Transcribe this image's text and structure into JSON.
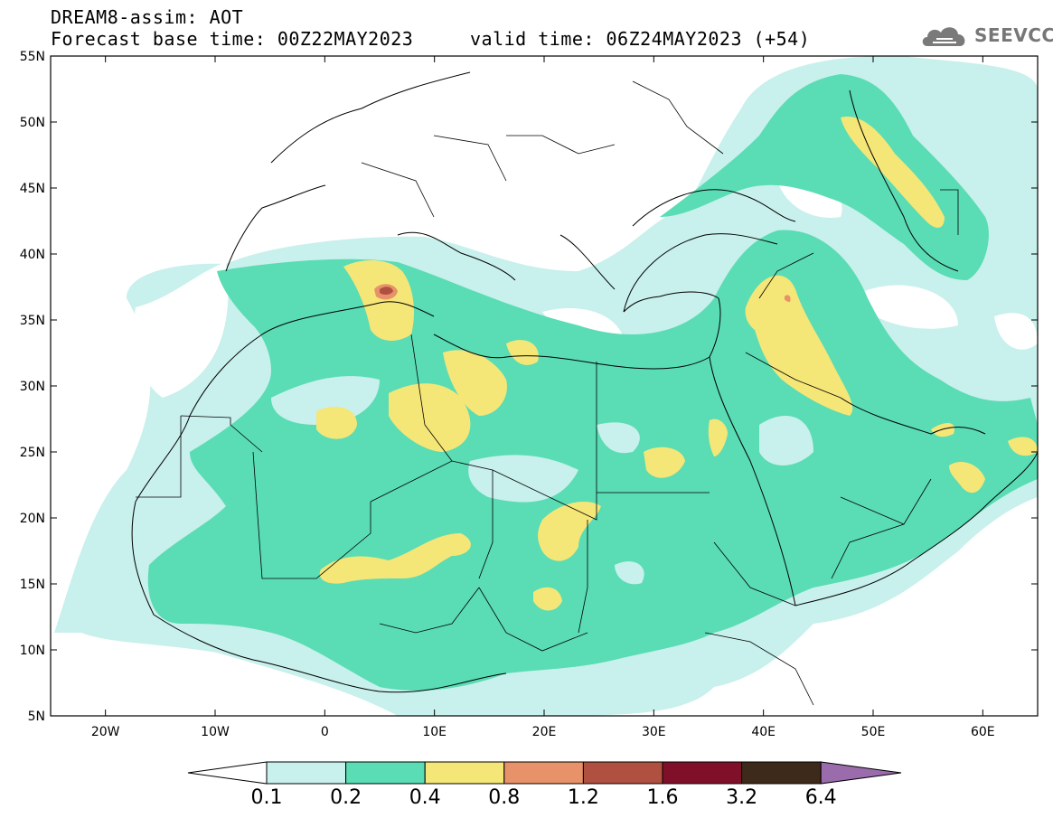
{
  "header": {
    "title_line1": "DREAM8-assim: AOT",
    "title_line2": "Forecast base time: 00Z22MAY2023     valid time: 06Z24MAY2023 (+54)",
    "brand": "SEEVCCC",
    "brand_icon": "cloud-logo-icon"
  },
  "map": {
    "projection": "lat-lon",
    "lon_range": [
      -25,
      65
    ],
    "lat_range": [
      5,
      55
    ],
    "lat_ticks": [
      {
        "value": 55,
        "label": "55N"
      },
      {
        "value": 50,
        "label": "50N"
      },
      {
        "value": 45,
        "label": "45N"
      },
      {
        "value": 40,
        "label": "40N"
      },
      {
        "value": 35,
        "label": "35N"
      },
      {
        "value": 30,
        "label": "30N"
      },
      {
        "value": 25,
        "label": "25N"
      },
      {
        "value": 20,
        "label": "20N"
      },
      {
        "value": 15,
        "label": "15N"
      },
      {
        "value": 10,
        "label": "10N"
      },
      {
        "value": 5,
        "label": "5N"
      }
    ],
    "lon_ticks": [
      {
        "value": -20,
        "label": "20W"
      },
      {
        "value": -10,
        "label": "10W"
      },
      {
        "value": 0,
        "label": "0"
      },
      {
        "value": 10,
        "label": "10E"
      },
      {
        "value": 20,
        "label": "20E"
      },
      {
        "value": 30,
        "label": "30E"
      },
      {
        "value": 40,
        "label": "40E"
      },
      {
        "value": 50,
        "label": "50E"
      },
      {
        "value": 60,
        "label": "60E"
      }
    ],
    "colors": {
      "c01": "#c8f0ec",
      "c02": "#5adcb4",
      "c04": "#f5e678",
      "c08": "#e8926a",
      "c12": "#b05040",
      "c16": "#80102a",
      "c32": "#3e2a1a",
      "c64": "#9a6cac"
    }
  },
  "colorbar": {
    "labels": [
      "0.1",
      "0.2",
      "0.4",
      "0.8",
      "1.2",
      "1.6",
      "3.2",
      "6.4"
    ],
    "colors": [
      "#c8f0ec",
      "#5adcb4",
      "#f5e678",
      "#e8926a",
      "#b05040",
      "#80102a",
      "#3e2a1a"
    ],
    "over_color": "#9a6cac",
    "under_color": "#ffffff"
  }
}
